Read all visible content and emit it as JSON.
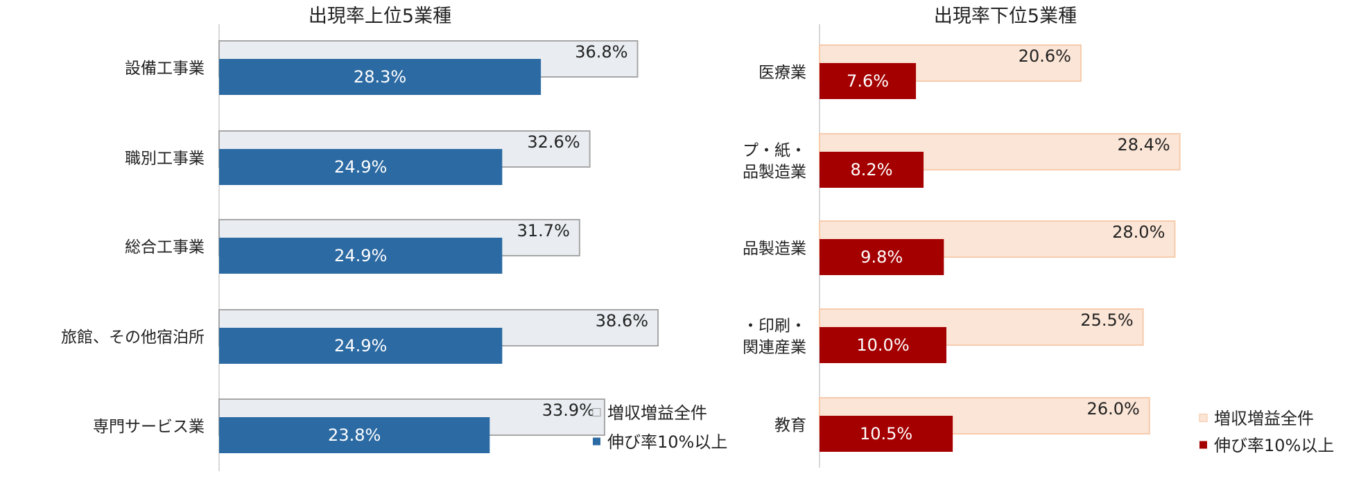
{
  "chart_data": [
    {
      "type": "bar",
      "orientation": "horizontal",
      "title": "出現率上位5業種",
      "categories": [
        "設備工事業",
        "職別工事業",
        "総合工事業",
        "旅館、その他宿泊所",
        "専門サービス業"
      ],
      "series": [
        {
          "name": "増収増益全件",
          "values": [
            36.8,
            32.6,
            31.7,
            38.6,
            33.9
          ],
          "labels": [
            "36.8%",
            "32.6%",
            "31.7%",
            "38.6%",
            "33.9%"
          ],
          "color": "#E9EDF1",
          "stroke": "#A6A6A6",
          "label_color": "#222222"
        },
        {
          "name": "伸び率10%以上",
          "values": [
            28.3,
            24.9,
            24.9,
            24.9,
            23.8
          ],
          "labels": [
            "28.3%",
            "24.9%",
            "24.9%",
            "24.9%",
            "23.8%"
          ],
          "color": "#2C6AA3",
          "stroke": "none",
          "label_color": "#FFFFFF"
        }
      ],
      "xlim": [
        0,
        40
      ],
      "legend_position": "bottom-right",
      "grid": false
    },
    {
      "type": "bar",
      "orientation": "horizontal",
      "title": "出現率下位5業種",
      "categories": [
        "医療業",
        [
          "パルプ・紙・",
          "紙加工品製造業"
        ],
        "ゴム製品製造業",
        [
          "出版・印刷・",
          "同関連産業"
        ],
        "教育"
      ],
      "series": [
        {
          "name": "増収増益全件",
          "values": [
            20.6,
            28.4,
            28.0,
            25.5,
            26.0
          ],
          "labels": [
            "20.6%",
            "28.4%",
            "28.0%",
            "25.5%",
            "26.0%"
          ],
          "color": "#FBE5D6",
          "stroke": "#F7CBAC",
          "label_color": "#222222"
        },
        {
          "name": "伸び率10%以上",
          "values": [
            7.6,
            8.2,
            9.8,
            10.0,
            10.5
          ],
          "labels": [
            "7.6%",
            "8.2%",
            "9.8%",
            "10.0%",
            "10.5%"
          ],
          "color": "#A50000",
          "stroke": "none",
          "label_color": "#FFFFFF"
        }
      ],
      "xlim": [
        0,
        40
      ],
      "legend_position": "bottom-right",
      "grid": false
    }
  ]
}
